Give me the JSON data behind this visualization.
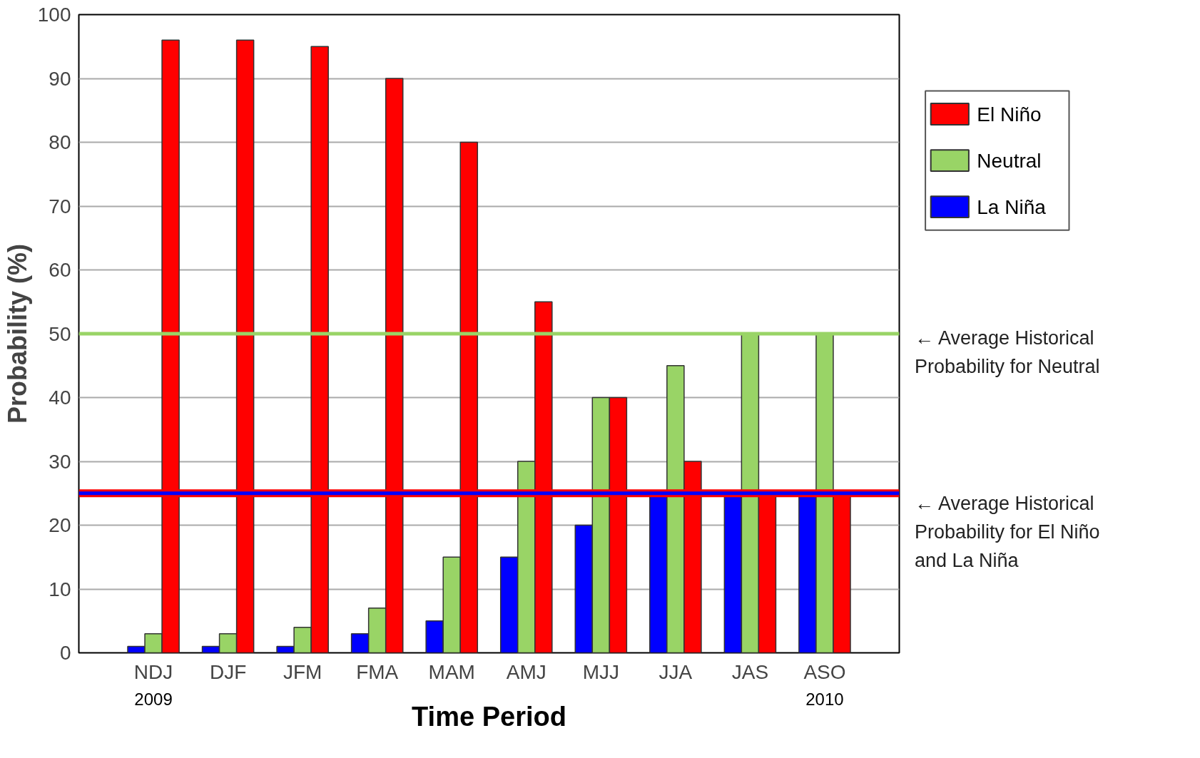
{
  "chart_data": {
    "type": "bar",
    "xlabel": "Time Period",
    "ylabel": "Probability (%)",
    "categories": [
      "NDJ",
      "DJF",
      "JFM",
      "FMA",
      "MAM",
      "AMJ",
      "MJJ",
      "JJA",
      "JAS",
      "ASO"
    ],
    "series": [
      {
        "name": "La Niña",
        "color": "#0000ff",
        "values": [
          1,
          1,
          1,
          3,
          5,
          15,
          20,
          25,
          25,
          25
        ]
      },
      {
        "name": "Neutral",
        "color": "#99d466",
        "values": [
          3,
          3,
          4,
          7,
          15,
          30,
          40,
          45,
          50,
          50
        ]
      },
      {
        "name": "El Niño",
        "color": "#ff0000",
        "values": [
          96,
          96,
          95,
          90,
          80,
          55,
          40,
          30,
          25,
          25
        ]
      }
    ],
    "ylim": [
      0,
      100
    ],
    "yticks": [
      0,
      10,
      20,
      30,
      40,
      50,
      60,
      70,
      80,
      90,
      100
    ],
    "grid": "y",
    "legend": "right",
    "ref_lines": [
      {
        "axis": "y",
        "value": 50,
        "label": "← Average Historical Probability for Neutral",
        "color": "#99d466"
      },
      {
        "axis": "y",
        "value": 25,
        "label": "← Average Historical Probability for El Niño and La Niña",
        "color": "#ff0000"
      },
      {
        "axis": "y",
        "value": 25,
        "color": "#0000ff"
      }
    ],
    "annotations": [
      "2009",
      "2010"
    ]
  }
}
